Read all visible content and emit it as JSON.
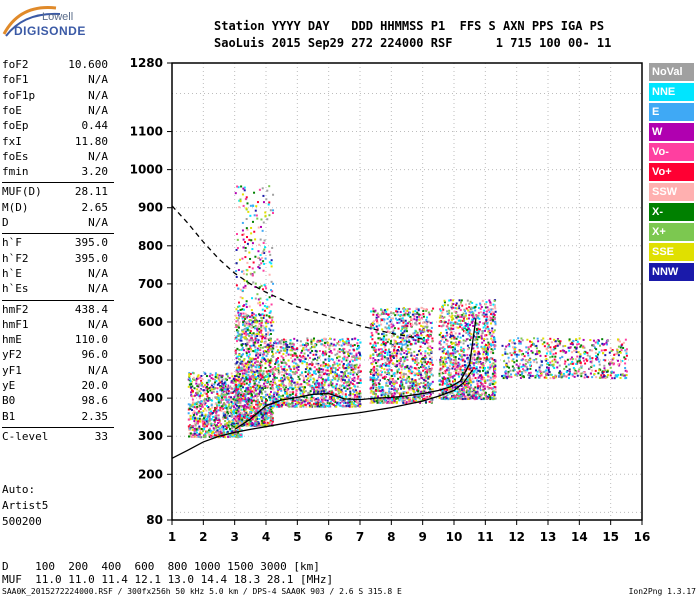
{
  "logo": {
    "line1": "Lowell",
    "line2": "DIGISONDE"
  },
  "header": {
    "line1": "Station YYYY DAY   DDD HHMMSS P1  FFS S AXN PPS IGA PS",
    "line2": "SaoLuis 2015 Sep29 272 224000 RSF      1 715 100 00- 11"
  },
  "params": [
    {
      "k": "foF2",
      "v": "10.600"
    },
    {
      "k": "foF1",
      "v": "N/A"
    },
    {
      "k": "foF1p",
      "v": "N/A"
    },
    {
      "k": "foE",
      "v": "N/A"
    },
    {
      "k": "foEp",
      "v": "0.44"
    },
    {
      "k": "fxI",
      "v": "11.80"
    },
    {
      "k": "foEs",
      "v": "N/A"
    },
    {
      "k": "fmin",
      "v": "3.20"
    },
    {
      "k": "MUF(D)",
      "v": "28.11"
    },
    {
      "k": "M(D)",
      "v": "2.65"
    },
    {
      "k": "D",
      "v": "N/A"
    },
    {
      "k": "h`F",
      "v": "395.0"
    },
    {
      "k": "h`F2",
      "v": "395.0"
    },
    {
      "k": "h`E",
      "v": "N/A"
    },
    {
      "k": "h`Es",
      "v": "N/A"
    },
    {
      "k": "hmF2",
      "v": "438.4"
    },
    {
      "k": "hmF1",
      "v": "N/A"
    },
    {
      "k": "hmE",
      "v": "110.0"
    },
    {
      "k": "yF2",
      "v": "96.0"
    },
    {
      "k": "yF1",
      "v": "N/A"
    },
    {
      "k": "yE",
      "v": "20.0"
    },
    {
      "k": "B0",
      "v": "98.6"
    },
    {
      "k": "B1",
      "v": "2.35"
    },
    {
      "k": "C-level",
      "v": "33"
    }
  ],
  "auto": {
    "l1": "Auto:",
    "l2": "Artist5",
    "l3": "500200"
  },
  "legend": [
    {
      "label": "NoVal",
      "color": "#a0a0a0"
    },
    {
      "label": "NNE",
      "color": "#00e5ff"
    },
    {
      "label": "E",
      "color": "#3fa9f5"
    },
    {
      "label": "W",
      "color": "#b000b0"
    },
    {
      "label": "Vo-",
      "color": "#ff3fa0"
    },
    {
      "label": "Vo+",
      "color": "#ff0033"
    },
    {
      "label": "SSW",
      "color": "#ffb0b0"
    },
    {
      "label": "X-",
      "color": "#008000"
    },
    {
      "label": "X+",
      "color": "#7cc850"
    },
    {
      "label": "SSE",
      "color": "#e0e000"
    },
    {
      "label": "NNW",
      "color": "#1a1aaa"
    }
  ],
  "muf_table": {
    "d_row": "D    100  200  400  600  800 1000 1500 3000 [km]",
    "muf_row": "MUF  11.0 11.0 11.4 12.1 13.0 14.4 18.3 28.1 [MHz]"
  },
  "footer": "SAA0K_2015272224000.RSF / 300fx256h 50 kHz 5.0 km / DPS-4 SAA0K 903 / 2.6 S 315.8 E",
  "version": "Ion2Png 1.3.17",
  "chart_data": {
    "type": "scatter",
    "title": "",
    "xlabel": "",
    "ylabel": "",
    "xlim": [
      1,
      16
    ],
    "ylim": [
      80,
      1280
    ],
    "x_ticks": [
      1,
      2,
      3,
      4,
      5,
      6,
      7,
      8,
      9,
      10,
      11,
      12,
      13,
      14,
      15,
      16
    ],
    "y_ticks": [
      80,
      200,
      300,
      400,
      500,
      600,
      700,
      800,
      900,
      1000,
      1100,
      1280
    ],
    "grid": true,
    "series": [
      {
        "kind": "line",
        "style": "solid",
        "x": [
          1.0,
          1.5,
          2.0,
          2.5,
          3.0,
          3.5,
          4.0,
          5.0,
          6.0,
          7.0,
          8.0,
          9.0,
          9.5,
          10.0,
          10.3,
          10.6
        ],
        "y": [
          242,
          263,
          285,
          300,
          310,
          318,
          325,
          340,
          352,
          362,
          375,
          392,
          405,
          420,
          440,
          475
        ]
      },
      {
        "kind": "line",
        "style": "solid",
        "x": [
          3.0,
          3.5,
          4.0,
          4.5,
          5.0,
          5.5,
          6.0,
          6.5,
          7.0,
          7.5,
          8.0,
          8.5,
          9.0,
          9.5,
          9.9,
          10.2,
          10.5,
          10.7
        ],
        "y": [
          318,
          345,
          380,
          395,
          402,
          410,
          412,
          398,
          396,
          400,
          402,
          406,
          412,
          420,
          430,
          445,
          490,
          610
        ]
      },
      {
        "kind": "line",
        "style": "dashed",
        "x": [
          1.0,
          1.5,
          2.0,
          2.5,
          3.0,
          3.5,
          4.0,
          5.0,
          6.0,
          7.0,
          8.0,
          9.0
        ],
        "y": [
          905,
          860,
          810,
          765,
          728,
          700,
          678,
          640,
          615,
          590,
          570,
          555
        ]
      }
    ]
  }
}
